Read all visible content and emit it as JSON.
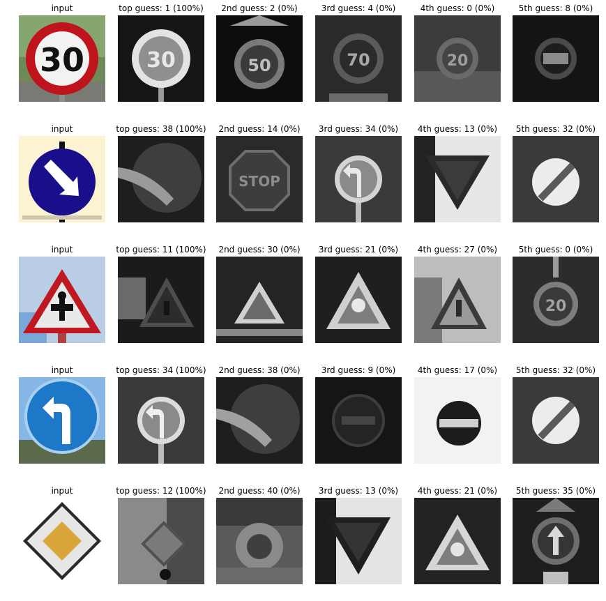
{
  "rows": [
    {
      "input_label": "input",
      "guesses": [
        "top guess: 1 (100%)",
        "2nd guess: 2 (0%)",
        "3rd guess: 4 (0%)",
        "4th guess: 0 (0%)",
        "5th guess: 8 (0%)"
      ],
      "input_icon": "speed-limit-30-sign-icon",
      "sign_text": "30"
    },
    {
      "input_label": "input",
      "guesses": [
        "top guess: 38 (100%)",
        "2nd guess: 14 (0%)",
        "3rd guess: 34 (0%)",
        "4th guess: 13 (0%)",
        "5th guess: 32 (0%)"
      ],
      "input_icon": "keep-right-sign-icon"
    },
    {
      "input_label": "input",
      "guesses": [
        "top guess: 11 (100%)",
        "2nd guess: 30 (0%)",
        "3rd guess: 21 (0%)",
        "4th guess: 27 (0%)",
        "5th guess: 0 (0%)"
      ],
      "input_icon": "right-of-way-warning-sign-icon"
    },
    {
      "input_label": "input",
      "guesses": [
        "top guess: 34 (100%)",
        "2nd guess: 38 (0%)",
        "3rd guess: 9 (0%)",
        "4th guess: 17 (0%)",
        "5th guess: 32 (0%)"
      ],
      "input_icon": "turn-left-ahead-sign-icon"
    },
    {
      "input_label": "input",
      "guesses": [
        "top guess: 12 (100%)",
        "2nd guess: 40 (0%)",
        "3rd guess: 13 (0%)",
        "4th guess: 21 (0%)",
        "5th guess: 35 (0%)"
      ],
      "input_icon": "priority-road-sign-icon"
    }
  ],
  "colors": {
    "sign_red": "#c0141c",
    "sign_blue": "#1a0f8a",
    "sky_blue": "#6aa8e0",
    "priority_yellow": "#d9a63a"
  }
}
